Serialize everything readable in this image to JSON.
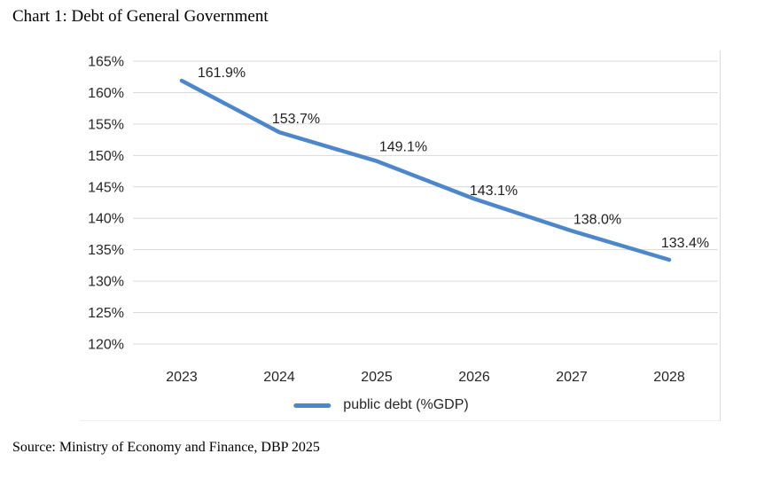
{
  "page": {
    "title": "Chart 1: Debt of General Government",
    "source": "Source: Ministry of Economy and Finance, DBP 2025"
  },
  "chart_data": {
    "type": "line",
    "title": "Chart 1: Debt of General Government",
    "categories": [
      "2023",
      "2024",
      "2025",
      "2026",
      "2027",
      "2028"
    ],
    "series": [
      {
        "name": "public debt (%GDP)",
        "values": [
          161.9,
          153.7,
          149.1,
          143.1,
          138.0,
          133.4
        ],
        "color": "#4c87cc"
      }
    ],
    "data_labels": [
      "161.9%",
      "153.7%",
      "149.1%",
      "143.1%",
      "138.0%",
      "133.4%"
    ],
    "ylim": [
      120,
      165
    ],
    "ytick_step": 5,
    "ytick_labels_top_to_bottom": [
      "165%",
      "160%",
      "155%",
      "150%",
      "145%",
      "140%",
      "135%",
      "130%",
      "125%",
      "120%"
    ],
    "grid": true,
    "gridline_color": "#d9d9d9",
    "axis_text_color": "#262626",
    "legend_position": "bottom",
    "legend_label": "public debt (%GDP)"
  }
}
